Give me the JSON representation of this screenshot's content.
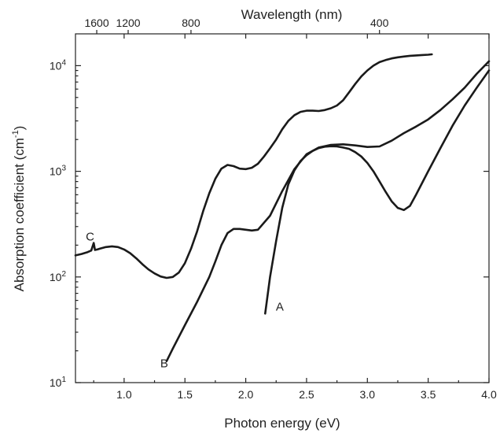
{
  "chart_data": {
    "type": "line",
    "xlabel": "Photon energy (eV)",
    "ylabel": "Absorption coefficient (cm",
    "ylabel_unit_exp": "-1",
    "ylabel_close": ")",
    "x2label": "Wavelength (nm)",
    "xlim": [
      0.6,
      4.0
    ],
    "ylim": [
      10,
      20000
    ],
    "yscale": "log",
    "xticks": [
      1.0,
      1.5,
      2.0,
      2.5,
      3.0,
      3.5,
      4.0
    ],
    "xtick_labels": [
      "1.0",
      "1.5",
      "2.0",
      "2.5",
      "3.0",
      "3.5",
      "4.0"
    ],
    "yticks": [
      {
        "value": 10,
        "base": "10",
        "exp": "1"
      },
      {
        "value": 100,
        "base": "10",
        "exp": "2"
      },
      {
        "value": 1000,
        "base": "10",
        "exp": "3"
      },
      {
        "value": 10000,
        "base": "10",
        "exp": "4"
      }
    ],
    "x2ticks": [
      {
        "wavelength_nm": 1600,
        "label": "1600"
      },
      {
        "wavelength_nm": 1200,
        "label": "1200"
      },
      {
        "wavelength_nm": 800,
        "label": "800"
      },
      {
        "wavelength_nm": 400,
        "label": "400"
      }
    ],
    "series": [
      {
        "name": "A",
        "label_at": [
          2.28,
          48
        ],
        "x": [
          2.16,
          2.2,
          2.25,
          2.3,
          2.35,
          2.4,
          2.45,
          2.5,
          2.55,
          2.6,
          2.65,
          2.7,
          2.75,
          2.8,
          2.85,
          2.9,
          2.95,
          3.0,
          3.05,
          3.1,
          3.15,
          3.2,
          3.25,
          3.3,
          3.35,
          3.4,
          3.5,
          3.6,
          3.7,
          3.8,
          3.9,
          4.0
        ],
        "y": [
          45,
          100,
          220,
          450,
          750,
          1020,
          1250,
          1420,
          1560,
          1660,
          1710,
          1730,
          1720,
          1680,
          1630,
          1520,
          1380,
          1200,
          1000,
          800,
          640,
          520,
          450,
          430,
          470,
          600,
          1000,
          1650,
          2700,
          4200,
          6200,
          9000
        ]
      },
      {
        "name": "B",
        "label_at": [
          1.33,
          14
        ],
        "x": [
          1.35,
          1.4,
          1.5,
          1.6,
          1.7,
          1.75,
          1.8,
          1.85,
          1.9,
          1.95,
          2.0,
          2.05,
          2.1,
          2.2,
          2.3,
          2.4,
          2.5,
          2.6,
          2.7,
          2.8,
          2.9,
          3.0,
          3.1,
          3.2,
          3.3,
          3.4,
          3.5,
          3.6,
          3.7,
          3.8,
          3.9,
          4.0
        ],
        "y": [
          16,
          21,
          35,
          58,
          100,
          140,
          200,
          260,
          285,
          285,
          280,
          275,
          280,
          380,
          650,
          1050,
          1450,
          1680,
          1780,
          1800,
          1760,
          1700,
          1720,
          1950,
          2300,
          2650,
          3100,
          3800,
          4800,
          6200,
          8400,
          11000
        ]
      },
      {
        "name": "C",
        "label_at": [
          0.72,
          222
        ],
        "x": [
          0.6,
          0.65,
          0.7,
          0.73,
          0.75,
          0.76,
          0.78,
          0.8,
          0.85,
          0.9,
          0.95,
          1.0,
          1.05,
          1.1,
          1.15,
          1.2,
          1.25,
          1.3,
          1.35,
          1.4,
          1.45,
          1.5,
          1.55,
          1.6,
          1.65,
          1.7,
          1.75,
          1.8,
          1.85,
          1.9,
          1.95,
          2.0,
          2.05,
          2.1,
          2.15,
          2.2,
          2.25,
          2.3,
          2.35,
          2.4,
          2.45,
          2.5,
          2.55,
          2.6,
          2.65,
          2.7,
          2.75,
          2.8,
          2.85,
          2.9,
          2.95,
          3.0,
          3.05,
          3.1,
          3.15,
          3.2,
          3.25,
          3.3,
          3.35,
          3.4,
          3.45,
          3.5,
          3.53
        ],
        "y": [
          160,
          165,
          172,
          178,
          210,
          180,
          182,
          185,
          192,
          195,
          192,
          182,
          168,
          150,
          132,
          118,
          108,
          101,
          98,
          100,
          110,
          135,
          185,
          270,
          420,
          620,
          850,
          1060,
          1150,
          1120,
          1060,
          1050,
          1080,
          1180,
          1380,
          1650,
          2000,
          2500,
          3000,
          3400,
          3650,
          3750,
          3750,
          3720,
          3800,
          3950,
          4200,
          4700,
          5600,
          6700,
          7900,
          9000,
          10000,
          10800,
          11300,
          11700,
          12000,
          12200,
          12400,
          12500,
          12600,
          12700,
          12800
        ]
      }
    ]
  }
}
